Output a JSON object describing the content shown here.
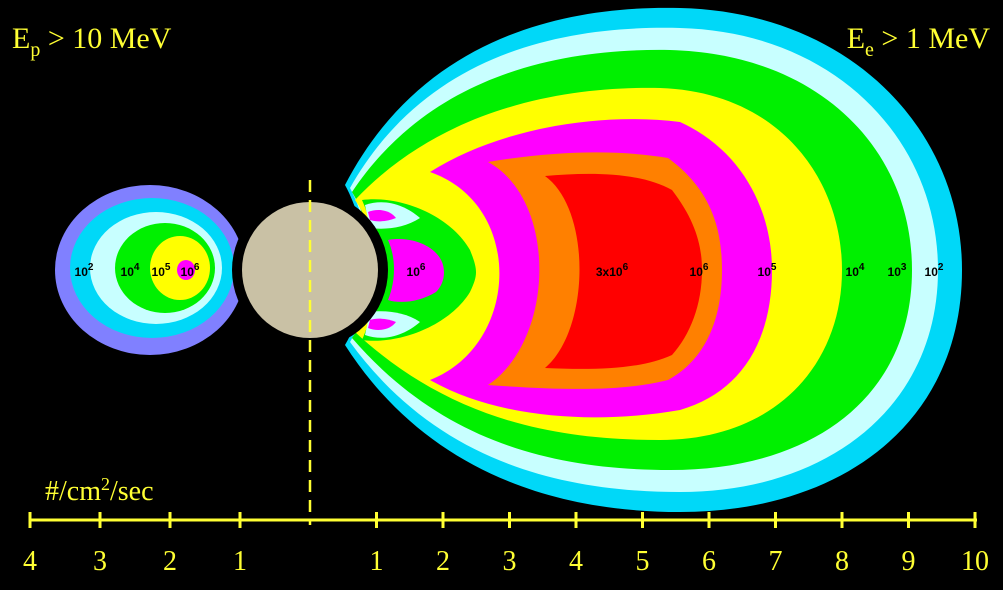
{
  "header": {
    "left": {
      "symbol": "E",
      "sub": "p",
      "rest": " > 10 MeV"
    },
    "right": {
      "symbol": "E",
      "sub": "e",
      "rest": " > 1 MeV"
    }
  },
  "units": {
    "base": "#/cm",
    "exp": "2",
    "rest": "/sec"
  },
  "inner_belt_labels": [
    {
      "base": "10",
      "exp": "2"
    },
    {
      "base": "10",
      "exp": "4"
    },
    {
      "base": "10",
      "exp": "5"
    },
    {
      "base": "10",
      "exp": "6"
    }
  ],
  "outer_belt_labels": [
    {
      "base": "10",
      "exp": "6"
    },
    {
      "base": "3x10",
      "exp": "6"
    },
    {
      "base": "10",
      "exp": "6"
    },
    {
      "base": "10",
      "exp": "5"
    },
    {
      "base": "10",
      "exp": "4"
    },
    {
      "base": "10",
      "exp": "3"
    },
    {
      "base": "10",
      "exp": "2"
    }
  ],
  "axis": {
    "left_ticks": [
      4,
      3,
      2,
      1
    ],
    "right_ticks": [
      1,
      2,
      3,
      4,
      5,
      6,
      7,
      8,
      9,
      10
    ]
  }
}
